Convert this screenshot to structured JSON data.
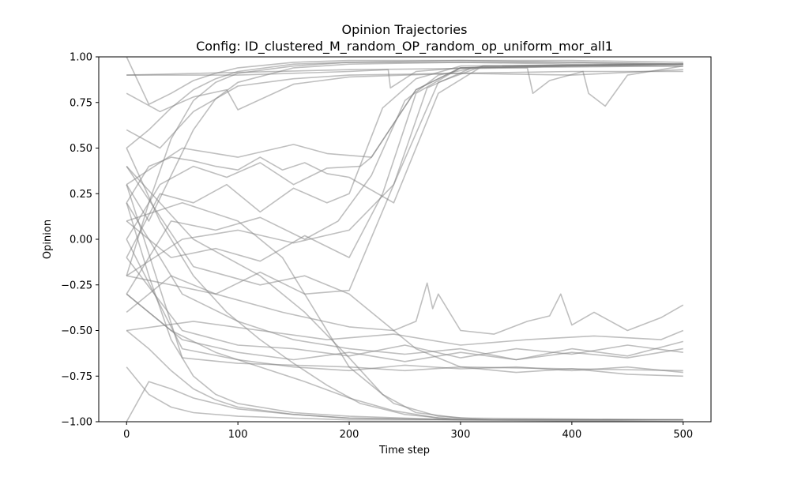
{
  "chart_data": {
    "type": "line",
    "title": "Opinion Trajectories",
    "subtitle": "Config: ID_clustered_M_random_OP_random_op_uniform_mor_all1",
    "xlabel": "Time step",
    "ylabel": "Opinion",
    "xlim": [
      -25,
      525
    ],
    "ylim": [
      -1.0,
      1.0
    ],
    "xticks": [
      0,
      100,
      200,
      300,
      400,
      500
    ],
    "yticks": [
      -1.0,
      -0.75,
      -0.5,
      -0.25,
      0.0,
      0.25,
      0.5,
      0.75,
      1.0
    ],
    "xtick_labels": [
      "0",
      "100",
      "200",
      "300",
      "400",
      "500"
    ],
    "ytick_labels": [
      "−1.00",
      "−0.75",
      "−0.50",
      "−0.25",
      "0.00",
      "0.25",
      "0.50",
      "0.75",
      "1.00"
    ],
    "grid": false,
    "legend": "none",
    "line_color": "#808080",
    "line_alpha": 0.5,
    "series": [
      {
        "x": [
          0,
          20,
          40,
          60,
          80,
          100,
          150,
          200,
          300,
          400,
          500
        ],
        "values": [
          1.0,
          0.74,
          0.8,
          0.87,
          0.91,
          0.94,
          0.97,
          0.98,
          0.98,
          0.98,
          0.97
        ]
      },
      {
        "x": [
          0,
          20,
          40,
          60,
          80,
          100,
          150,
          200,
          300,
          400,
          500
        ],
        "values": [
          0.5,
          0.6,
          0.72,
          0.82,
          0.88,
          0.92,
          0.96,
          0.97,
          0.98,
          0.97,
          0.96
        ]
      },
      {
        "x": [
          0,
          20,
          40,
          60,
          80,
          100,
          150,
          200,
          300,
          400,
          500
        ],
        "values": [
          -0.2,
          0.2,
          0.55,
          0.76,
          0.86,
          0.91,
          0.95,
          0.97,
          0.97,
          0.97,
          0.96
        ]
      },
      {
        "x": [
          0,
          20,
          40,
          60,
          80,
          100,
          150,
          200,
          300,
          400,
          500
        ],
        "values": [
          0.3,
          0.1,
          0.35,
          0.6,
          0.77,
          0.86,
          0.94,
          0.96,
          0.97,
          0.96,
          0.96
        ]
      },
      {
        "x": [
          0,
          30,
          60,
          90,
          100,
          150,
          200,
          300,
          400,
          500
        ],
        "values": [
          0.8,
          0.7,
          0.78,
          0.82,
          0.71,
          0.85,
          0.89,
          0.91,
          0.9,
          0.93
        ]
      },
      {
        "x": [
          0,
          30,
          60,
          100,
          150,
          200,
          300,
          400,
          500
        ],
        "values": [
          0.6,
          0.5,
          0.7,
          0.84,
          0.88,
          0.9,
          0.91,
          0.92,
          0.92
        ]
      },
      {
        "x": [
          0,
          100,
          200,
          235,
          237,
          260,
          300,
          400,
          500
        ],
        "values": [
          0.9,
          0.9,
          0.92,
          0.93,
          0.83,
          0.92,
          0.94,
          0.95,
          0.95
        ]
      },
      {
        "x": [
          0,
          200,
          360,
          365,
          380,
          410,
          415,
          430,
          450,
          470,
          500
        ],
        "values": [
          0.9,
          0.93,
          0.94,
          0.8,
          0.87,
          0.92,
          0.8,
          0.73,
          0.9,
          0.92,
          0.95
        ]
      },
      {
        "x": [
          0,
          20,
          40,
          60,
          80,
          100,
          120,
          140,
          160,
          180,
          200,
          240,
          280,
          320,
          500
        ],
        "values": [
          0.2,
          0.4,
          0.45,
          0.43,
          0.4,
          0.38,
          0.45,
          0.38,
          0.42,
          0.36,
          0.34,
          0.2,
          0.8,
          0.95,
          0.96
        ]
      },
      {
        "x": [
          0,
          30,
          60,
          90,
          120,
          150,
          180,
          210,
          220,
          260,
          300,
          500
        ],
        "values": [
          0.0,
          0.3,
          0.4,
          0.34,
          0.42,
          0.3,
          0.39,
          0.4,
          0.45,
          0.82,
          0.94,
          0.96
        ]
      },
      {
        "x": [
          0,
          30,
          60,
          90,
          120,
          150,
          180,
          200,
          230,
          260,
          300,
          500
        ],
        "values": [
          -0.1,
          0.25,
          0.2,
          0.3,
          0.15,
          0.28,
          0.2,
          0.25,
          0.72,
          0.88,
          0.95,
          0.96
        ]
      },
      {
        "x": [
          0,
          40,
          80,
          120,
          160,
          190,
          220,
          250,
          280,
          320,
          500
        ],
        "values": [
          -0.3,
          0.1,
          0.05,
          0.12,
          0.0,
          0.1,
          0.35,
          0.76,
          0.9,
          0.95,
          0.96
        ]
      },
      {
        "x": [
          0,
          40,
          80,
          120,
          160,
          200,
          230,
          260,
          300,
          500
        ],
        "values": [
          0.1,
          -0.1,
          -0.05,
          -0.12,
          0.02,
          -0.1,
          0.25,
          0.8,
          0.94,
          0.96
        ]
      },
      {
        "x": [
          0,
          40,
          80,
          120,
          160,
          200,
          240,
          270,
          310,
          500
        ],
        "values": [
          -0.4,
          -0.2,
          -0.3,
          -0.18,
          -0.3,
          -0.28,
          0.3,
          0.83,
          0.94,
          0.95
        ]
      },
      {
        "x": [
          0,
          50,
          100,
          150,
          180,
          220,
          260,
          300,
          500
        ],
        "values": [
          0.3,
          0.5,
          0.45,
          0.52,
          0.47,
          0.45,
          0.82,
          0.94,
          0.96
        ]
      },
      {
        "x": [
          0,
          50,
          100,
          150,
          200,
          240,
          280,
          320,
          500
        ],
        "values": [
          -0.2,
          0.0,
          0.05,
          -0.02,
          0.05,
          0.3,
          0.86,
          0.95,
          0.96
        ]
      },
      {
        "x": [
          0,
          60,
          120,
          160,
          200,
          240,
          260,
          300,
          500
        ],
        "values": [
          0.4,
          -0.15,
          -0.25,
          -0.2,
          -0.3,
          -0.5,
          -0.6,
          -0.7,
          -0.72
        ]
      },
      {
        "x": [
          0,
          50,
          100,
          150,
          200,
          250,
          300,
          350,
          400,
          450,
          500
        ],
        "values": [
          0.2,
          -0.3,
          -0.45,
          -0.55,
          -0.6,
          -0.63,
          -0.6,
          -0.66,
          -0.62,
          -0.65,
          -0.6
        ]
      },
      {
        "x": [
          0,
          50,
          100,
          150,
          200,
          250,
          300,
          350,
          400,
          450,
          500
        ],
        "values": [
          -0.1,
          -0.5,
          -0.58,
          -0.6,
          -0.64,
          -0.58,
          -0.65,
          -0.6,
          -0.63,
          -0.58,
          -0.62
        ]
      },
      {
        "x": [
          0,
          50,
          100,
          150,
          200,
          250,
          300,
          350,
          400,
          450,
          500
        ],
        "values": [
          -0.3,
          -0.55,
          -0.62,
          -0.66,
          -0.62,
          -0.67,
          -0.62,
          -0.66,
          -0.6,
          -0.64,
          -0.56
        ]
      },
      {
        "x": [
          0,
          50,
          100,
          150,
          200,
          250,
          300,
          350,
          400,
          450,
          500
        ],
        "values": [
          0.0,
          -0.6,
          -0.66,
          -0.7,
          -0.72,
          -0.69,
          -0.71,
          -0.7,
          -0.72,
          -0.7,
          -0.73
        ]
      },
      {
        "x": [
          0,
          50,
          100,
          150,
          200,
          250,
          300,
          350,
          400,
          450,
          500
        ],
        "values": [
          0.3,
          -0.65,
          -0.68,
          -0.69,
          -0.7,
          -0.72,
          -0.7,
          -0.73,
          -0.71,
          -0.74,
          -0.75
        ]
      },
      {
        "x": [
          0,
          80,
          140,
          200,
          240,
          260,
          270,
          275,
          280,
          300,
          330,
          360,
          380,
          390,
          400,
          420,
          450,
          480,
          500
        ],
        "values": [
          -0.2,
          -0.3,
          -0.4,
          -0.48,
          -0.5,
          -0.45,
          -0.24,
          -0.38,
          -0.3,
          -0.5,
          -0.52,
          -0.45,
          -0.42,
          -0.3,
          -0.47,
          -0.4,
          -0.5,
          -0.43,
          -0.36
        ]
      },
      {
        "x": [
          0,
          60,
          120,
          180,
          240,
          300,
          360,
          420,
          480,
          500
        ],
        "values": [
          -0.5,
          -0.45,
          -0.5,
          -0.55,
          -0.52,
          -0.58,
          -0.55,
          -0.53,
          -0.55,
          -0.5
        ]
      },
      {
        "x": [
          0,
          20,
          40,
          60,
          80,
          100,
          150,
          200,
          300,
          400,
          500
        ],
        "values": [
          -1.0,
          -0.78,
          -0.82,
          -0.87,
          -0.9,
          -0.93,
          -0.96,
          -0.98,
          -0.99,
          -0.99,
          -0.99
        ]
      },
      {
        "x": [
          0,
          20,
          40,
          60,
          80,
          100,
          150,
          200,
          300,
          400,
          500
        ],
        "values": [
          -0.5,
          -0.6,
          -0.72,
          -0.82,
          -0.88,
          -0.92,
          -0.96,
          -0.98,
          -0.99,
          -0.99,
          -0.99
        ]
      },
      {
        "x": [
          0,
          20,
          40,
          60,
          80,
          100,
          150,
          200,
          300,
          400,
          500
        ],
        "values": [
          0.2,
          -0.2,
          -0.55,
          -0.75,
          -0.85,
          -0.9,
          -0.95,
          -0.97,
          -0.99,
          -0.99,
          -0.99
        ]
      },
      {
        "x": [
          0,
          30,
          60,
          90,
          120,
          150,
          180,
          210,
          250,
          300,
          500
        ],
        "values": [
          0.5,
          0.1,
          -0.2,
          -0.4,
          -0.55,
          -0.68,
          -0.8,
          -0.9,
          -0.96,
          -0.99,
          -0.99
        ]
      },
      {
        "x": [
          0,
          40,
          80,
          120,
          160,
          200,
          240,
          280,
          320,
          500
        ],
        "values": [
          -0.3,
          -0.5,
          -0.62,
          -0.7,
          -0.78,
          -0.87,
          -0.94,
          -0.98,
          -0.99,
          -0.99
        ]
      },
      {
        "x": [
          0,
          50,
          100,
          140,
          170,
          200,
          240,
          280,
          330,
          500
        ],
        "values": [
          0.1,
          0.2,
          0.1,
          -0.1,
          -0.4,
          -0.7,
          -0.9,
          -0.97,
          -0.99,
          -0.99
        ]
      },
      {
        "x": [
          0,
          60,
          120,
          160,
          200,
          230,
          260,
          300,
          500
        ],
        "values": [
          0.4,
          0.0,
          -0.2,
          -0.4,
          -0.65,
          -0.85,
          -0.95,
          -0.98,
          -0.99
        ]
      },
      {
        "x": [
          0,
          20,
          40,
          60,
          100,
          150,
          200,
          300,
          500
        ],
        "values": [
          -0.7,
          -0.85,
          -0.92,
          -0.95,
          -0.97,
          -0.98,
          -0.99,
          -0.99,
          -1.0
        ]
      }
    ]
  }
}
